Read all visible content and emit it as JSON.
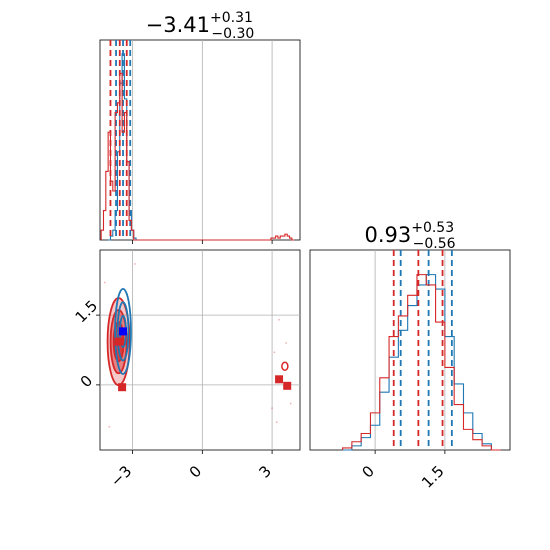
{
  "chart_data": [
    {
      "type": "histogram",
      "panel": "marginal-param-1",
      "title": {
        "main": "−3.41",
        "sup": "+0.31",
        "sub": "−0.30"
      },
      "xlim": [
        -4.4,
        4.2
      ],
      "x_ticks": [
        -3,
        0,
        3
      ],
      "grid": true,
      "series": [
        {
          "color": "#1f77b4",
          "quantiles": [
            -3.71,
            -3.41,
            -3.1
          ],
          "bins": [
            -4.0,
            -3.9,
            -3.8,
            -3.7,
            -3.6,
            -3.5,
            -3.4,
            -3.3,
            -3.2,
            -3.1,
            -3.0,
            -2.9,
            -2.8
          ],
          "counts": [
            0.0,
            0.02,
            0.05,
            0.15,
            0.45,
            0.8,
            0.95,
            0.72,
            0.4,
            0.15,
            0.05,
            0.01,
            0.0
          ]
        },
        {
          "color": "#d62728",
          "quantiles": [
            -3.95,
            -3.55,
            -3.25
          ],
          "bins": [
            -4.3,
            -4.2,
            -4.1,
            -4.0,
            -3.9,
            -3.8,
            -3.7,
            -3.6,
            -3.5,
            -3.4,
            -3.3,
            -3.2,
            -3.1,
            -3.0,
            -2.9,
            2.9,
            3.0,
            3.1,
            3.2,
            3.3,
            3.4,
            3.5,
            3.6,
            3.7,
            3.8,
            3.9
          ],
          "counts": [
            0.05,
            0.15,
            0.35,
            0.55,
            0.3,
            0.25,
            0.65,
            0.7,
            0.85,
            0.55,
            0.65,
            0.4,
            0.1,
            0.05,
            0.0,
            0.0,
            0.01,
            0.01,
            0.02,
            0.01,
            0.02,
            0.02,
            0.03,
            0.02,
            0.01,
            0.0
          ]
        }
      ]
    },
    {
      "type": "histogram",
      "panel": "marginal-param-2",
      "title": {
        "main": "0.93",
        "sup": "+0.53",
        "sub": "−0.56"
      },
      "xlim": [
        -1.4,
        2.9
      ],
      "x_ticks": [
        0.0,
        1.5
      ],
      "grid": true,
      "series": [
        {
          "color": "#1f77b4",
          "quantiles": [
            0.55,
            1.15,
            1.65
          ],
          "bins": [
            -0.6,
            -0.4,
            -0.2,
            0.0,
            0.2,
            0.4,
            0.6,
            0.8,
            1.0,
            1.2,
            1.4,
            1.6,
            1.8,
            2.0,
            2.2,
            2.4,
            2.6
          ],
          "counts": [
            0.0,
            0.02,
            0.06,
            0.12,
            0.28,
            0.45,
            0.58,
            0.7,
            0.8,
            0.85,
            0.78,
            0.55,
            0.32,
            0.18,
            0.08,
            0.03,
            0.0
          ]
        },
        {
          "color": "#d62728",
          "quantiles": [
            0.4,
            0.93,
            1.45
          ],
          "bins": [
            -0.6,
            -0.4,
            -0.2,
            0.0,
            0.2,
            0.4,
            0.6,
            0.8,
            1.0,
            1.2,
            1.4,
            1.6,
            1.8,
            2.0,
            2.2,
            2.4,
            2.6
          ],
          "counts": [
            0.01,
            0.04,
            0.08,
            0.18,
            0.35,
            0.55,
            0.65,
            0.75,
            0.85,
            0.8,
            0.62,
            0.4,
            0.22,
            0.1,
            0.05,
            0.02,
            0.0
          ]
        }
      ]
    },
    {
      "type": "contour",
      "panel": "joint-param-1-param-2",
      "xlim": [
        -4.4,
        4.2
      ],
      "ylim": [
        -1.4,
        2.9
      ],
      "x_ticks": [
        -3,
        0,
        3
      ],
      "y_ticks": [
        0.0,
        1.5
      ],
      "grid": true,
      "series": [
        {
          "color": "#1f77b4",
          "center": [
            -3.41,
            1.15
          ],
          "spread": [
            0.18,
            0.65
          ],
          "points": [
            [
              -3.41,
              1.15
            ]
          ]
        },
        {
          "color": "#d62728",
          "center": [
            -3.6,
            0.93
          ],
          "spread": [
            0.38,
            0.75
          ],
          "points": [
            [
              -3.6,
              0.93
            ],
            [
              -3.45,
              -0.05
            ],
            [
              3.3,
              0.12
            ],
            [
              3.65,
              -0.02
            ]
          ]
        }
      ]
    }
  ]
}
